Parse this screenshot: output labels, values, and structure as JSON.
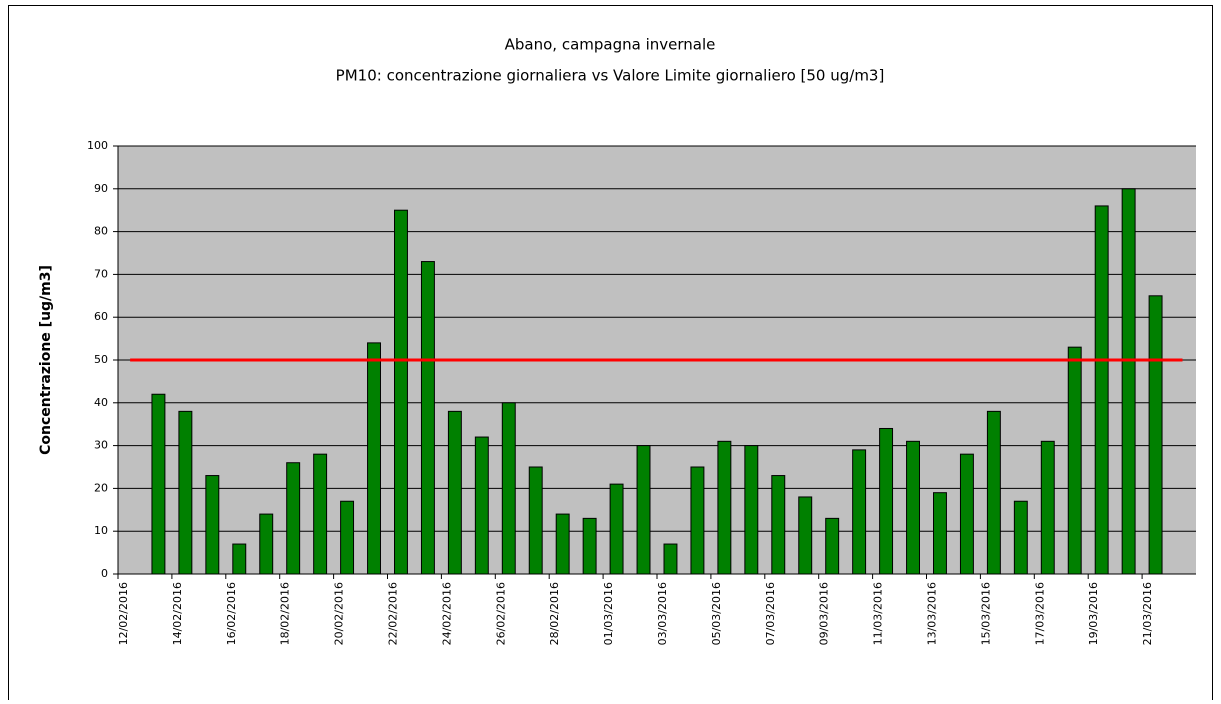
{
  "chart_data": {
    "type": "bar",
    "title": "Abano, campagna invernale",
    "subtitle": "PM10: concentrazione giornaliera vs Valore Limite giornaliero [50 ug/m3]",
    "y_label": "Concentrazione [ug/m3]",
    "categories": [
      "12/02/2016",
      null,
      "14/02/2016",
      null,
      "16/02/2016",
      null,
      "18/02/2016",
      null,
      "20/02/2016",
      null,
      "22/02/2016",
      null,
      "24/02/2016",
      null,
      "26/02/2016",
      null,
      "28/02/2016",
      null,
      "01/03/2016",
      null,
      "03/03/2016",
      null,
      "05/03/2016",
      null,
      "07/03/2016",
      null,
      "09/03/2016",
      null,
      "11/03/2016",
      null,
      "13/03/2016",
      null,
      "15/03/2016",
      null,
      "17/03/2016",
      null,
      "19/03/2016",
      null,
      "21/03/2016",
      null
    ],
    "values": [
      null,
      42,
      38,
      23,
      7,
      14,
      26,
      28,
      17,
      54,
      85,
      73,
      38,
      32,
      40,
      25,
      14,
      13,
      21,
      30,
      7,
      25,
      31,
      30,
      23,
      18,
      13,
      29,
      34,
      31,
      19,
      28,
      38,
      17,
      31,
      53,
      86,
      90,
      65,
      null
    ],
    "color": "#008000",
    "limit": 50,
    "limit_color": "#ff0000",
    "ylim": [
      0,
      100
    ],
    "yticks": [
      0,
      10,
      20,
      30,
      40,
      50,
      60,
      70,
      80,
      90,
      100
    ],
    "grid": true
  }
}
